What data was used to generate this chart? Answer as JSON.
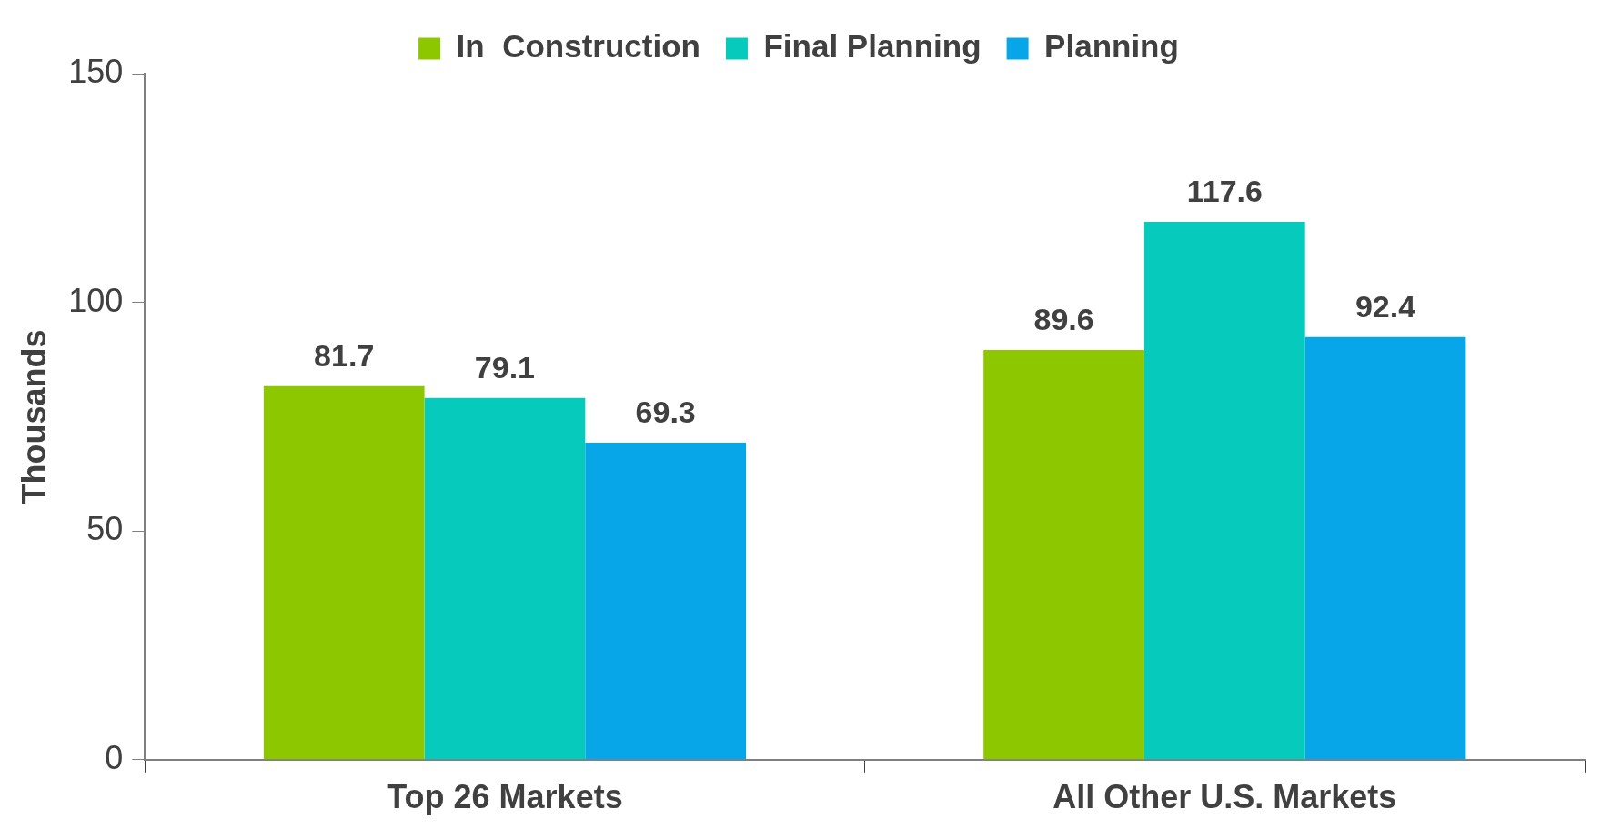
{
  "chart_data": {
    "type": "bar",
    "ylabel": "Thousands",
    "categories": [
      "Top 26 Markets",
      "All Other U.S. Markets"
    ],
    "series": [
      {
        "name": "In  Construction",
        "color": "#8dc700",
        "values": [
          81.7,
          89.6
        ]
      },
      {
        "name": "Final Planning",
        "color": "#05cabc",
        "values": [
          79.1,
          117.6
        ]
      },
      {
        "name": "Planning",
        "color": "#07a6e8",
        "values": [
          69.3,
          92.4
        ]
      }
    ],
    "ylim": [
      0,
      150
    ],
    "yticks": [
      0,
      50,
      100,
      150
    ],
    "grid": false,
    "legend": "top",
    "data_labels": true
  }
}
